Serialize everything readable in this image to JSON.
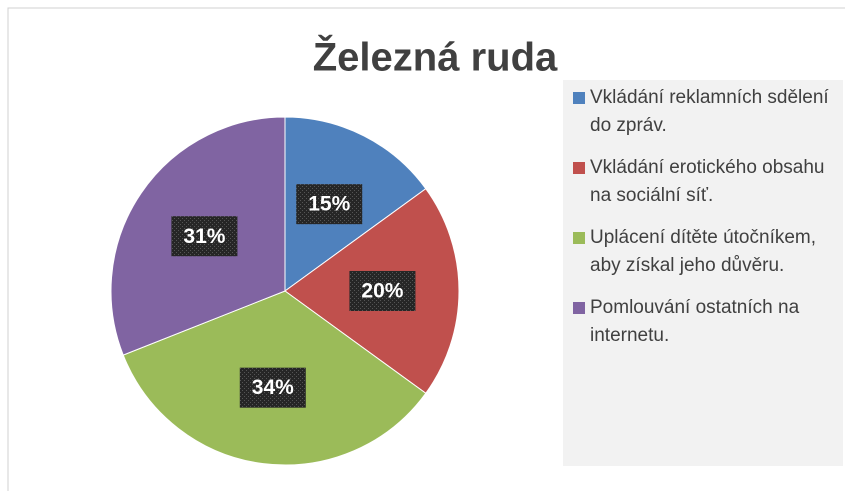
{
  "chart_data": {
    "type": "pie",
    "title": "Železná ruda",
    "categories": [
      "Vkládání reklamních sdělení do zpráv.",
      "Vkládání erotického obsahu na sociální síť.",
      "Uplácení dítěte útočníkem, aby získal jeho důvěru.",
      "Pomlouvání ostatních na internetu."
    ],
    "values": [
      15,
      20,
      34,
      31
    ],
    "value_labels": [
      "15%",
      "20%",
      "34%",
      "31%"
    ],
    "colors": [
      "#4f81bd",
      "#c0504d",
      "#9bbb59",
      "#8064a2"
    ],
    "legend": "right"
  }
}
